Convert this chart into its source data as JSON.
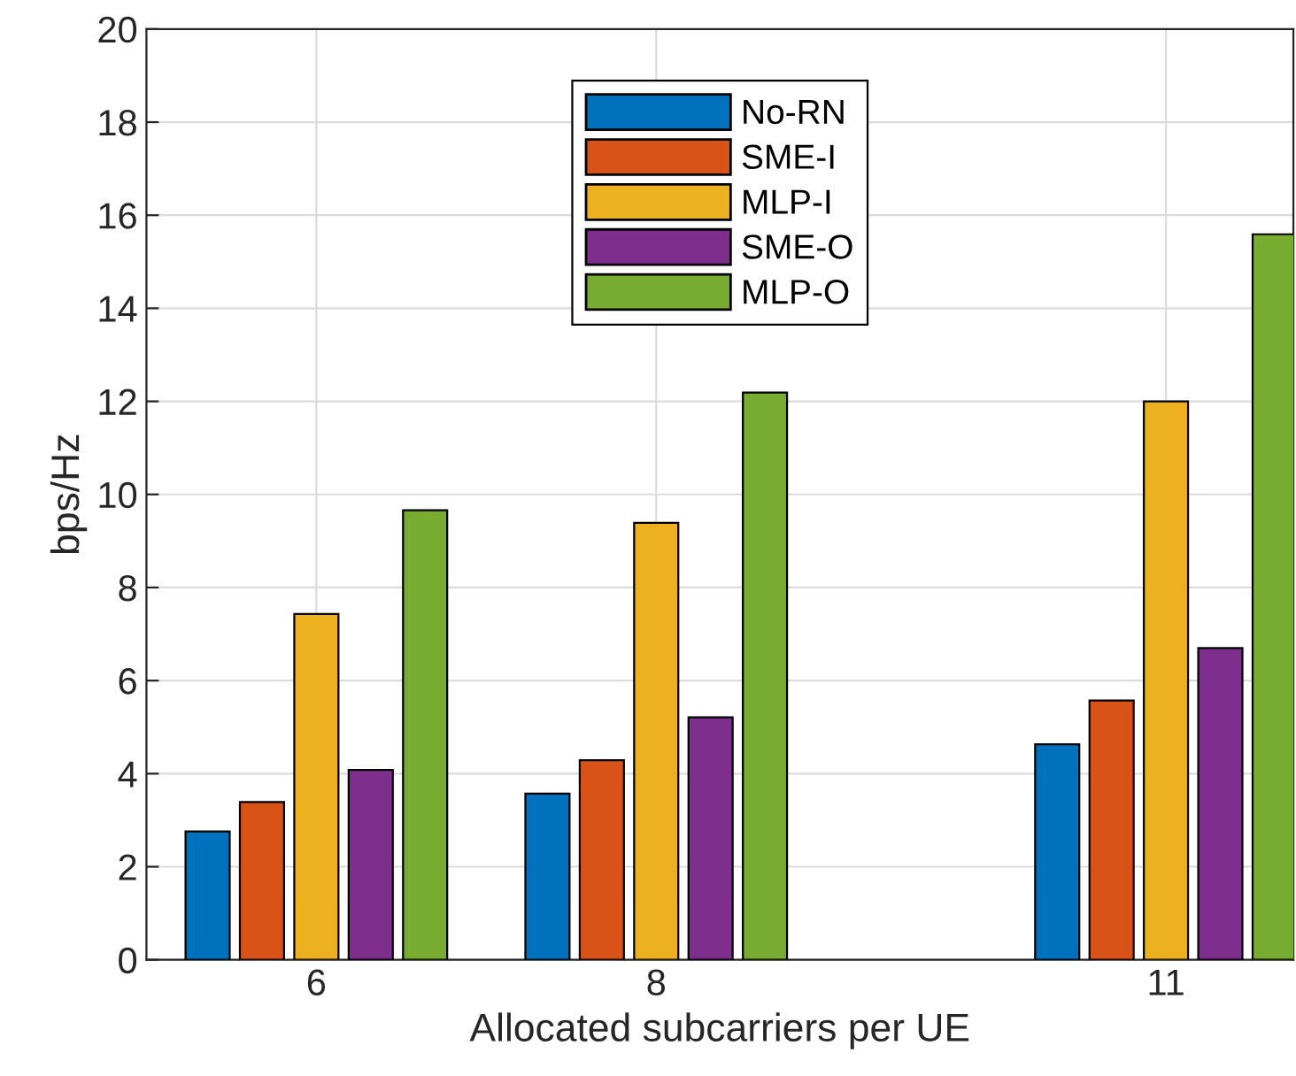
{
  "chart_data": {
    "type": "bar",
    "xlabel": "Allocated subcarriers per UE",
    "ylabel": "bps/Hz",
    "x": [
      6,
      8,
      11
    ],
    "series": [
      {
        "name": "No-RN",
        "color": "#0072bd",
        "values": [
          2.76,
          3.57,
          4.63
        ]
      },
      {
        "name": "SME-I",
        "color": "#d95319",
        "values": [
          3.39,
          4.29,
          5.57
        ]
      },
      {
        "name": "MLP-I",
        "color": "#edb120",
        "values": [
          7.43,
          9.39,
          12.0
        ]
      },
      {
        "name": "SME-O",
        "color": "#7e2f8e",
        "values": [
          4.08,
          5.21,
          6.7
        ]
      },
      {
        "name": "MLP-O",
        "color": "#77ac30",
        "values": [
          9.66,
          12.19,
          15.59
        ]
      }
    ],
    "xlim": [
      5,
      11.75
    ],
    "xticks": [
      6,
      8,
      11
    ],
    "ylim": [
      0,
      20
    ],
    "yticks": [
      0,
      2,
      4,
      6,
      8,
      10,
      12,
      14,
      16,
      18,
      20
    ],
    "grid": true,
    "legend": "top"
  }
}
